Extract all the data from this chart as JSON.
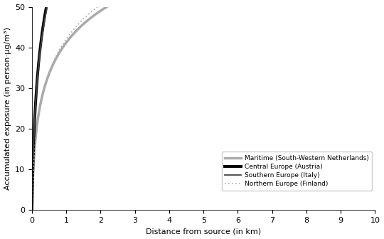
{
  "xlabel": "Distance from source (in km)",
  "ylabel": "Accumulated exposure (in person ·μg/m³)",
  "xlim": [
    0,
    10
  ],
  "ylim": [
    0,
    50
  ],
  "xticks": [
    0,
    1,
    2,
    3,
    4,
    5,
    6,
    7,
    8,
    9,
    10
  ],
  "yticks": [
    0,
    10,
    20,
    30,
    40,
    50
  ],
  "series": [
    {
      "label": "Maritime (South-Western Netherlands)",
      "color": "#aaaaaa",
      "linewidth": 2.5,
      "linestyle": "solid",
      "scale": 11.5,
      "rate": 35.0
    },
    {
      "label": "Central Europe (Austria)",
      "color": "#000000",
      "linewidth": 2.8,
      "linestyle": "solid",
      "scale": 20.5,
      "rate": 25.0
    },
    {
      "label": "Southern Europe (Italy)",
      "color": "#444444",
      "linewidth": 1.3,
      "linestyle": "solid",
      "scale": 19.8,
      "rate": 26.0
    },
    {
      "label": "Northern Europe (Finland)",
      "color": "#aaaaaa",
      "linewidth": 1.2,
      "linestyle": "dotted",
      "scale": 12.5,
      "rate": 28.0
    }
  ],
  "bg_color": "#ffffff",
  "fontsize": 8
}
